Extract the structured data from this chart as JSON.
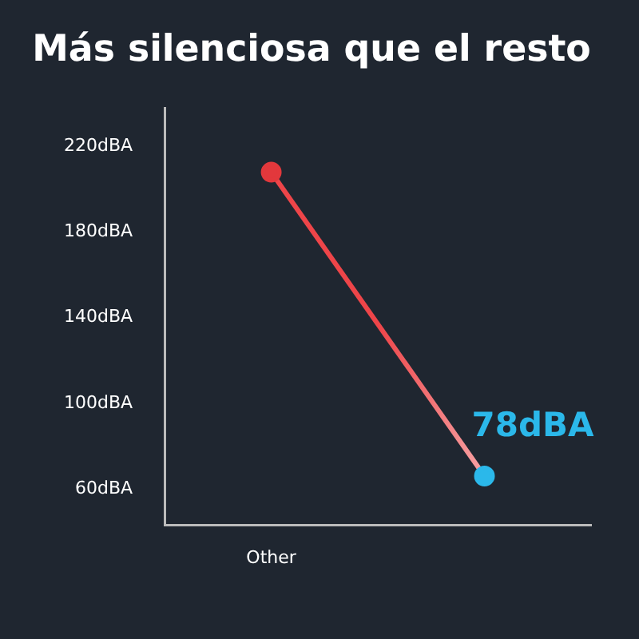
{
  "chart_data": {
    "type": "line",
    "title": "Más silenciosa que el resto",
    "categories": [
      "Other",
      null
    ],
    "series": [
      {
        "color": "#ee4549",
        "colors": [
          "#e2383c",
          "#2bb8ea"
        ],
        "values": [
          208,
          66
        ]
      }
    ],
    "ylim": [
      43,
      238
    ],
    "yticks": [
      {
        "value": 60,
        "label": "60dBA"
      },
      {
        "value": 100,
        "label": "100dBA"
      },
      {
        "value": 140,
        "label": "140dBA"
      },
      {
        "value": 180,
        "label": "180dBA"
      },
      {
        "value": 220,
        "label": "220dBA"
      }
    ],
    "grid": false,
    "legend": false,
    "marker": "circle",
    "line_style": "solid",
    "annotations": [
      "78dBA"
    ]
  }
}
